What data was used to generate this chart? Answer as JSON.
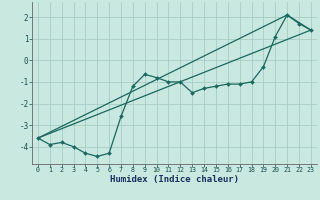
{
  "xlabel": "Humidex (Indice chaleur)",
  "xlim": [
    -0.5,
    23.5
  ],
  "ylim": [
    -4.8,
    2.7
  ],
  "yticks": [
    -4,
    -3,
    -2,
    -1,
    0,
    1,
    2
  ],
  "xticks": [
    0,
    1,
    2,
    3,
    4,
    5,
    6,
    7,
    8,
    9,
    10,
    11,
    12,
    13,
    14,
    15,
    16,
    17,
    18,
    19,
    20,
    21,
    22,
    23
  ],
  "bg_color": "#c8e8e0",
  "grid_color": "#a8ccc4",
  "line_color": "#1a6860",
  "curve_x": [
    0,
    1,
    2,
    3,
    4,
    5,
    6,
    7,
    8,
    9,
    10,
    11,
    12,
    13,
    14,
    15,
    16,
    17,
    18,
    19,
    20,
    21,
    22,
    23
  ],
  "curve_y": [
    -3.6,
    -3.9,
    -3.8,
    -4.0,
    -4.3,
    -4.45,
    -4.3,
    -2.6,
    -1.2,
    -0.65,
    -0.8,
    -1.0,
    -1.0,
    -1.5,
    -1.3,
    -1.2,
    -1.1,
    -1.1,
    -1.0,
    -0.3,
    1.1,
    2.1,
    1.7,
    1.4
  ],
  "line1_x": [
    0,
    23
  ],
  "line1_y": [
    -3.6,
    1.4
  ],
  "line2_x": [
    0,
    21
  ],
  "line2_y": [
    -3.6,
    2.1
  ],
  "line3_x": [
    21,
    23
  ],
  "line3_y": [
    2.1,
    1.4
  ]
}
